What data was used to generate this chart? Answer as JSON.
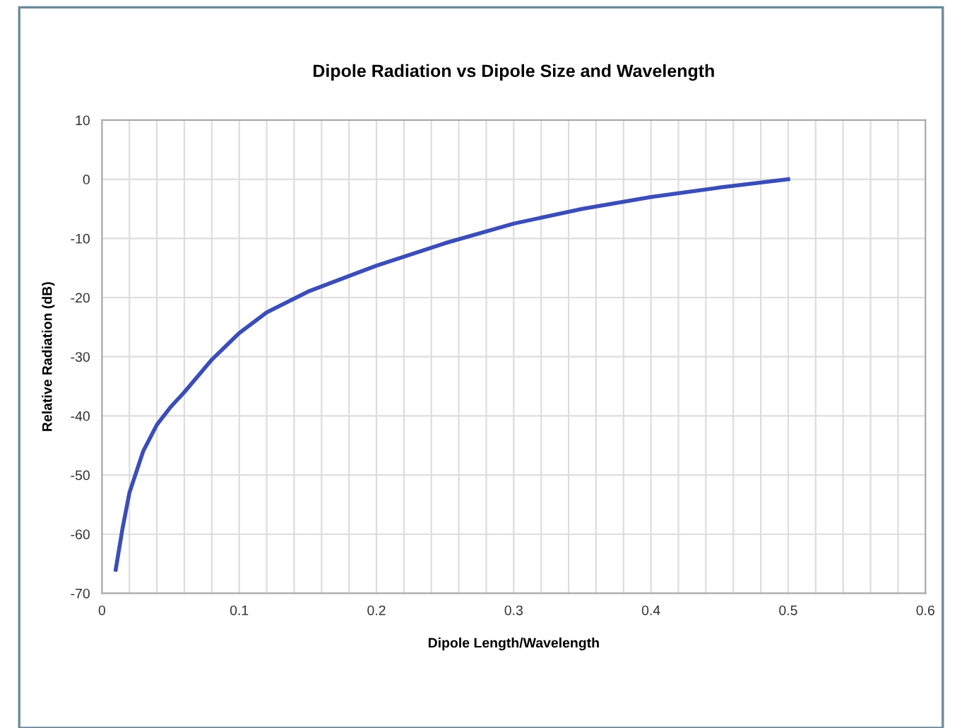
{
  "chart_data": {
    "type": "line",
    "title": "Dipole Radiation vs Dipole Size and Wavelength",
    "xlabel": "Dipole Length/Wavelength",
    "ylabel": "Relative Radiation (dB)",
    "x": [
      0.01,
      0.015,
      0.02,
      0.03,
      0.04,
      0.05,
      0.06,
      0.08,
      0.1,
      0.12,
      0.15,
      0.2,
      0.25,
      0.3,
      0.35,
      0.4,
      0.45,
      0.5
    ],
    "series": [
      {
        "color": "#3b4db8",
        "values": [
          -66,
          -59,
          -53,
          -46,
          -41.5,
          -38.5,
          -36,
          -30.5,
          -26,
          -22.5,
          -19,
          -14.6,
          -10.8,
          -7.5,
          -5,
          -3,
          -1.4,
          0
        ]
      }
    ],
    "xlim": [
      0,
      0.6
    ],
    "ylim": [
      -70,
      10
    ],
    "xticks": [
      0,
      {
        "value": 0.02,
        "label": null
      },
      {
        "value": 0.04,
        "label": null
      },
      {
        "value": 0.06,
        "label": null
      },
      {
        "value": 0.08,
        "label": null
      },
      0.1,
      {
        "value": 0.12,
        "label": null
      },
      {
        "value": 0.14,
        "label": null
      },
      {
        "value": 0.16,
        "label": null
      },
      {
        "value": 0.18,
        "label": null
      },
      0.2,
      {
        "value": 0.22,
        "label": null
      },
      {
        "value": 0.24,
        "label": null
      },
      {
        "value": 0.26,
        "label": null
      },
      {
        "value": 0.28,
        "label": null
      },
      0.3,
      {
        "value": 0.32,
        "label": null
      },
      {
        "value": 0.34,
        "label": null
      },
      {
        "value": 0.36,
        "label": null
      },
      {
        "value": 0.38,
        "label": null
      },
      0.4,
      {
        "value": 0.42,
        "label": null
      },
      {
        "value": 0.44,
        "label": null
      },
      {
        "value": 0.46,
        "label": null
      },
      {
        "value": 0.48,
        "label": null
      },
      0.5,
      {
        "value": 0.52,
        "label": null
      },
      {
        "value": 0.54,
        "label": null
      },
      {
        "value": 0.56,
        "label": null
      },
      {
        "value": 0.58,
        "label": null
      },
      0.6
    ],
    "yticks": [
      -70,
      -60,
      -50,
      -40,
      -30,
      -20,
      -10,
      0,
      10
    ],
    "grid": true,
    "legend": false,
    "marker": "none",
    "line_style": "solid"
  }
}
